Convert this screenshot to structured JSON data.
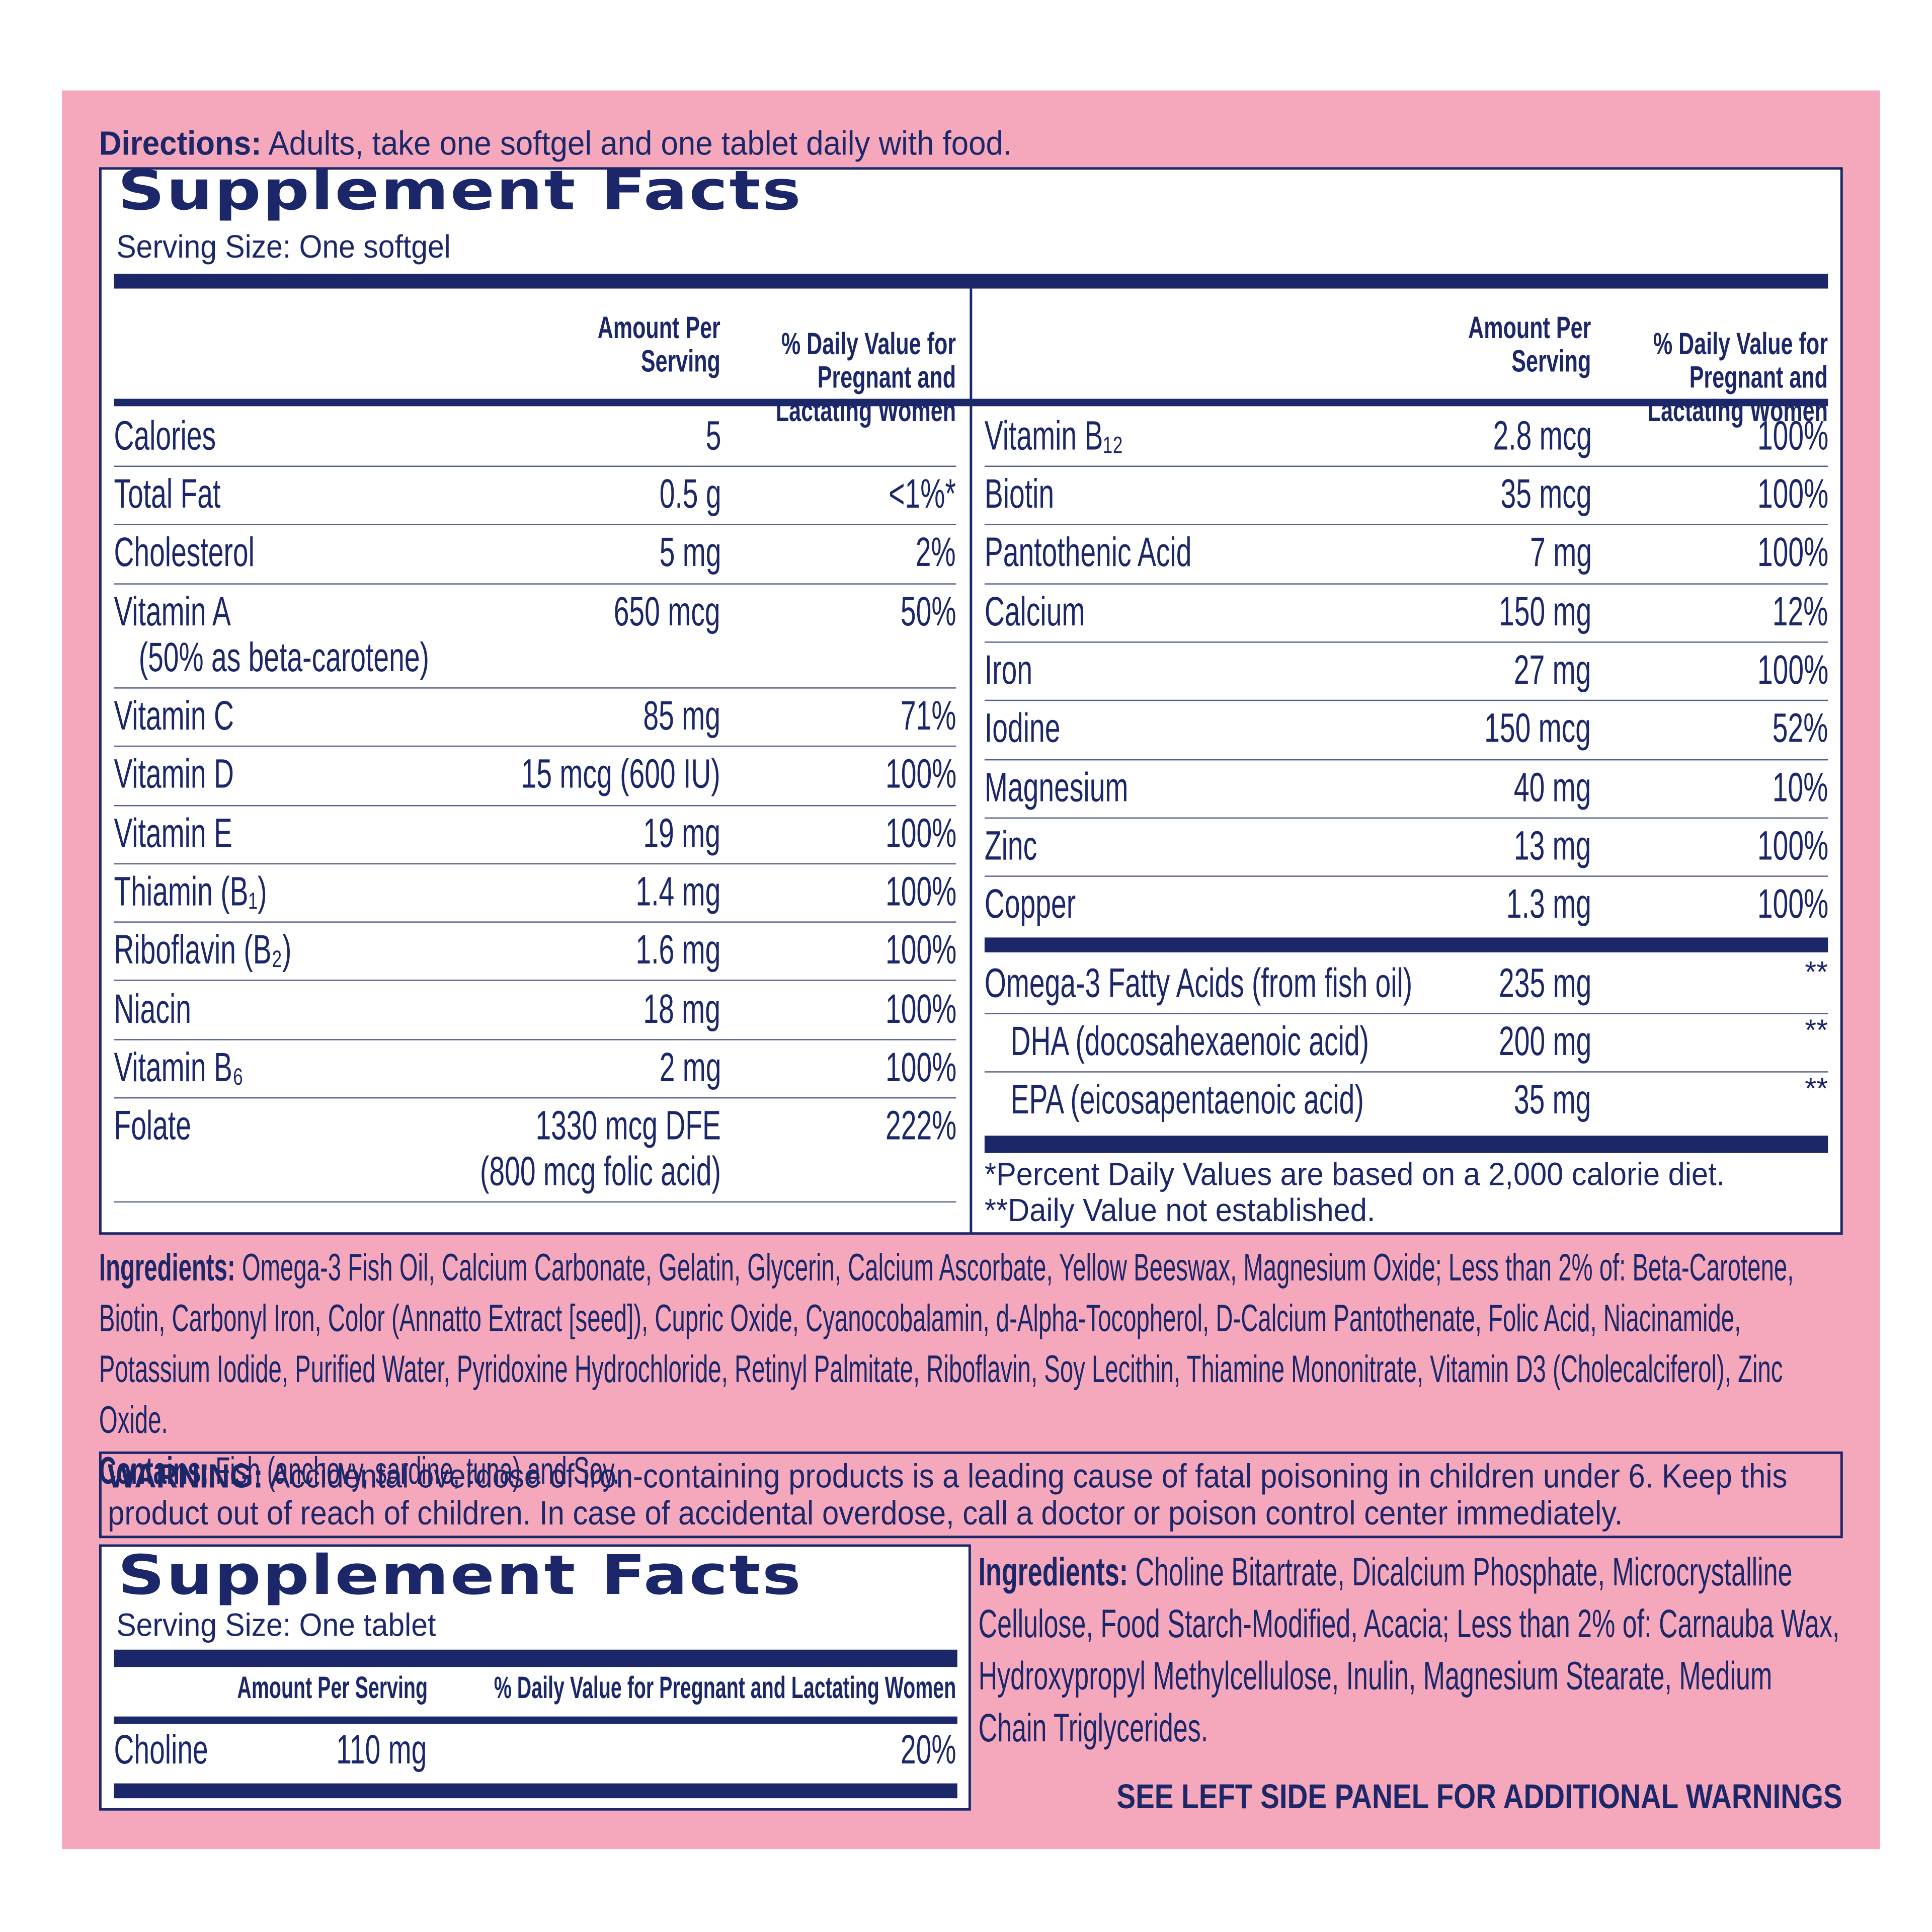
{
  "directions": {
    "label": "Directions:",
    "text": "Adults, take one softgel and one tablet daily with food."
  },
  "softgel_facts": {
    "title": "Supplement Facts",
    "serving_size": "Serving Size: One softgel",
    "left_header": {
      "amount": "Amount Per\nServing",
      "daily_value": "% Daily Value for\nPregnant and\nLactating Women"
    },
    "right_header": {
      "amount": "Amount Per\nServing",
      "daily_value": "% Daily Value for\nPregnant and\nLactating Women"
    },
    "left_rows": [
      {
        "nutrient": "Calories",
        "amount": "5"
      },
      {
        "nutrient": "Total Fat",
        "amount": "0.5 g",
        "daily_value": "<1%*"
      },
      {
        "nutrient": "Cholesterol",
        "amount": "5 mg",
        "daily_value": "2%"
      },
      {
        "nutrient": "Vitamin A",
        "note": "(50% as beta-carotene)",
        "amount": "650 mcg",
        "daily_value": "50%"
      },
      {
        "nutrient": "Vitamin C",
        "amount": "85 mg",
        "daily_value": "71%"
      },
      {
        "nutrient": "Vitamin D",
        "amount": "15 mcg (600 IU)",
        "daily_value": "100%"
      },
      {
        "nutrient": "Vitamin E",
        "amount": "19 mg",
        "daily_value": "100%"
      },
      {
        "nutrient": "Thiamin (B₁)",
        "amount": "1.4 mg",
        "daily_value": "100%"
      },
      {
        "nutrient": "Riboflavin (B₂)",
        "amount": "1.6 mg",
        "daily_value": "100%"
      },
      {
        "nutrient": "Niacin",
        "amount": "18 mg",
        "daily_value": "100%"
      },
      {
        "nutrient": "Vitamin B₆",
        "amount": "2 mg",
        "daily_value": "100%"
      },
      {
        "nutrient": "Folate",
        "amount": "1330 mcg DFE",
        "amount_note": "(800 mcg folic acid)",
        "daily_value": "222%"
      }
    ],
    "right_rows": [
      {
        "nutrient": "Vitamin B₁₂",
        "amount": "2.8 mcg",
        "daily_value": "100%"
      },
      {
        "nutrient": "Biotin",
        "amount": "35 mcg",
        "daily_value": "100%"
      },
      {
        "nutrient": "Pantothenic Acid",
        "amount": "7 mg",
        "daily_value": "100%"
      },
      {
        "nutrient": "Calcium",
        "amount": "150 mg",
        "daily_value": "12%"
      },
      {
        "nutrient": "Iron",
        "amount": "27 mg",
        "daily_value": "100%"
      },
      {
        "nutrient": "Iodine",
        "amount": "150 mcg",
        "daily_value": "52%"
      },
      {
        "nutrient": "Magnesium",
        "amount": "40 mg",
        "daily_value": "10%"
      },
      {
        "nutrient": "Zinc",
        "amount": "13 mg",
        "daily_value": "100%"
      },
      {
        "nutrient": "Copper",
        "amount": "1.3 mg",
        "daily_value": "100%"
      }
    ],
    "omega_rows": [
      {
        "nutrient": "Omega-3 Fatty Acids (from fish oil)",
        "amount": "235 mg",
        "daily_value": "**"
      },
      {
        "nutrient": "DHA (docosahexaenoic acid)",
        "amount": "200 mg",
        "daily_value": "**"
      },
      {
        "nutrient": "EPA (eicosapentaenoic acid)",
        "amount": "35 mg",
        "daily_value": "**"
      }
    ],
    "footnotes": [
      "*Percent Daily Values are based on a 2,000 calorie diet.",
      "**Daily Value not established."
    ]
  },
  "softgel_ingredients": {
    "label": "Ingredients:",
    "text": "Omega-3 Fish Oil, Calcium Carbonate, Gelatin, Glycerin, Calcium Ascorbate, Yellow Beeswax, Magnesium Oxide; Less than 2% of: Beta-Carotene, Biotin, Carbonyl Iron, Color (Annatto Extract [seed]), Cupric Oxide, Cyanocobalamin, d-Alpha-Tocopherol, D-Calcium Pantothenate, Folic Acid, Niacinamide, Potassium Iodide, Purified Water, Pyridoxine Hydrochloride, Retinyl Palmitate, Riboflavin, Soy Lecithin, Thiamine Mononitrate, Vitamin D3 (Cholecalciferol), Zinc Oxide.",
    "contains_label": "Contains:",
    "contains_text": "Fish (anchovy, sardine, tuna) and Soy."
  },
  "warning": {
    "label": "WARNING:",
    "text": "Accidental overdose of iron-containing products is a leading cause of fatal poisoning in children under 6. Keep this product out of reach of children. In case of accidental overdose, call a doctor or poison control center immediately."
  },
  "tablet_facts": {
    "title": "Supplement Facts",
    "serving_size": "Serving Size: One tablet",
    "header": {
      "amount": "Amount Per Serving",
      "daily_value": "% Daily Value for Pregnant and Lactating Women"
    },
    "rows": [
      {
        "nutrient": "Choline",
        "amount": "110 mg",
        "daily_value": "20%"
      }
    ]
  },
  "tablet_ingredients": {
    "label": "Ingredients:",
    "text": "Choline Bitartrate, Dicalcium Phosphate, Microcrystalline Cellulose, Food Starch-Modified, Acacia; Less than 2% of: Carnauba Wax, Hydroxypropyl Methylcellulose, Inulin, Magnesium Stearate, Medium Chain Triglycerides."
  },
  "side_panel_note": "SEE LEFT SIDE PANEL FOR ADDITIONAL WARNINGS"
}
